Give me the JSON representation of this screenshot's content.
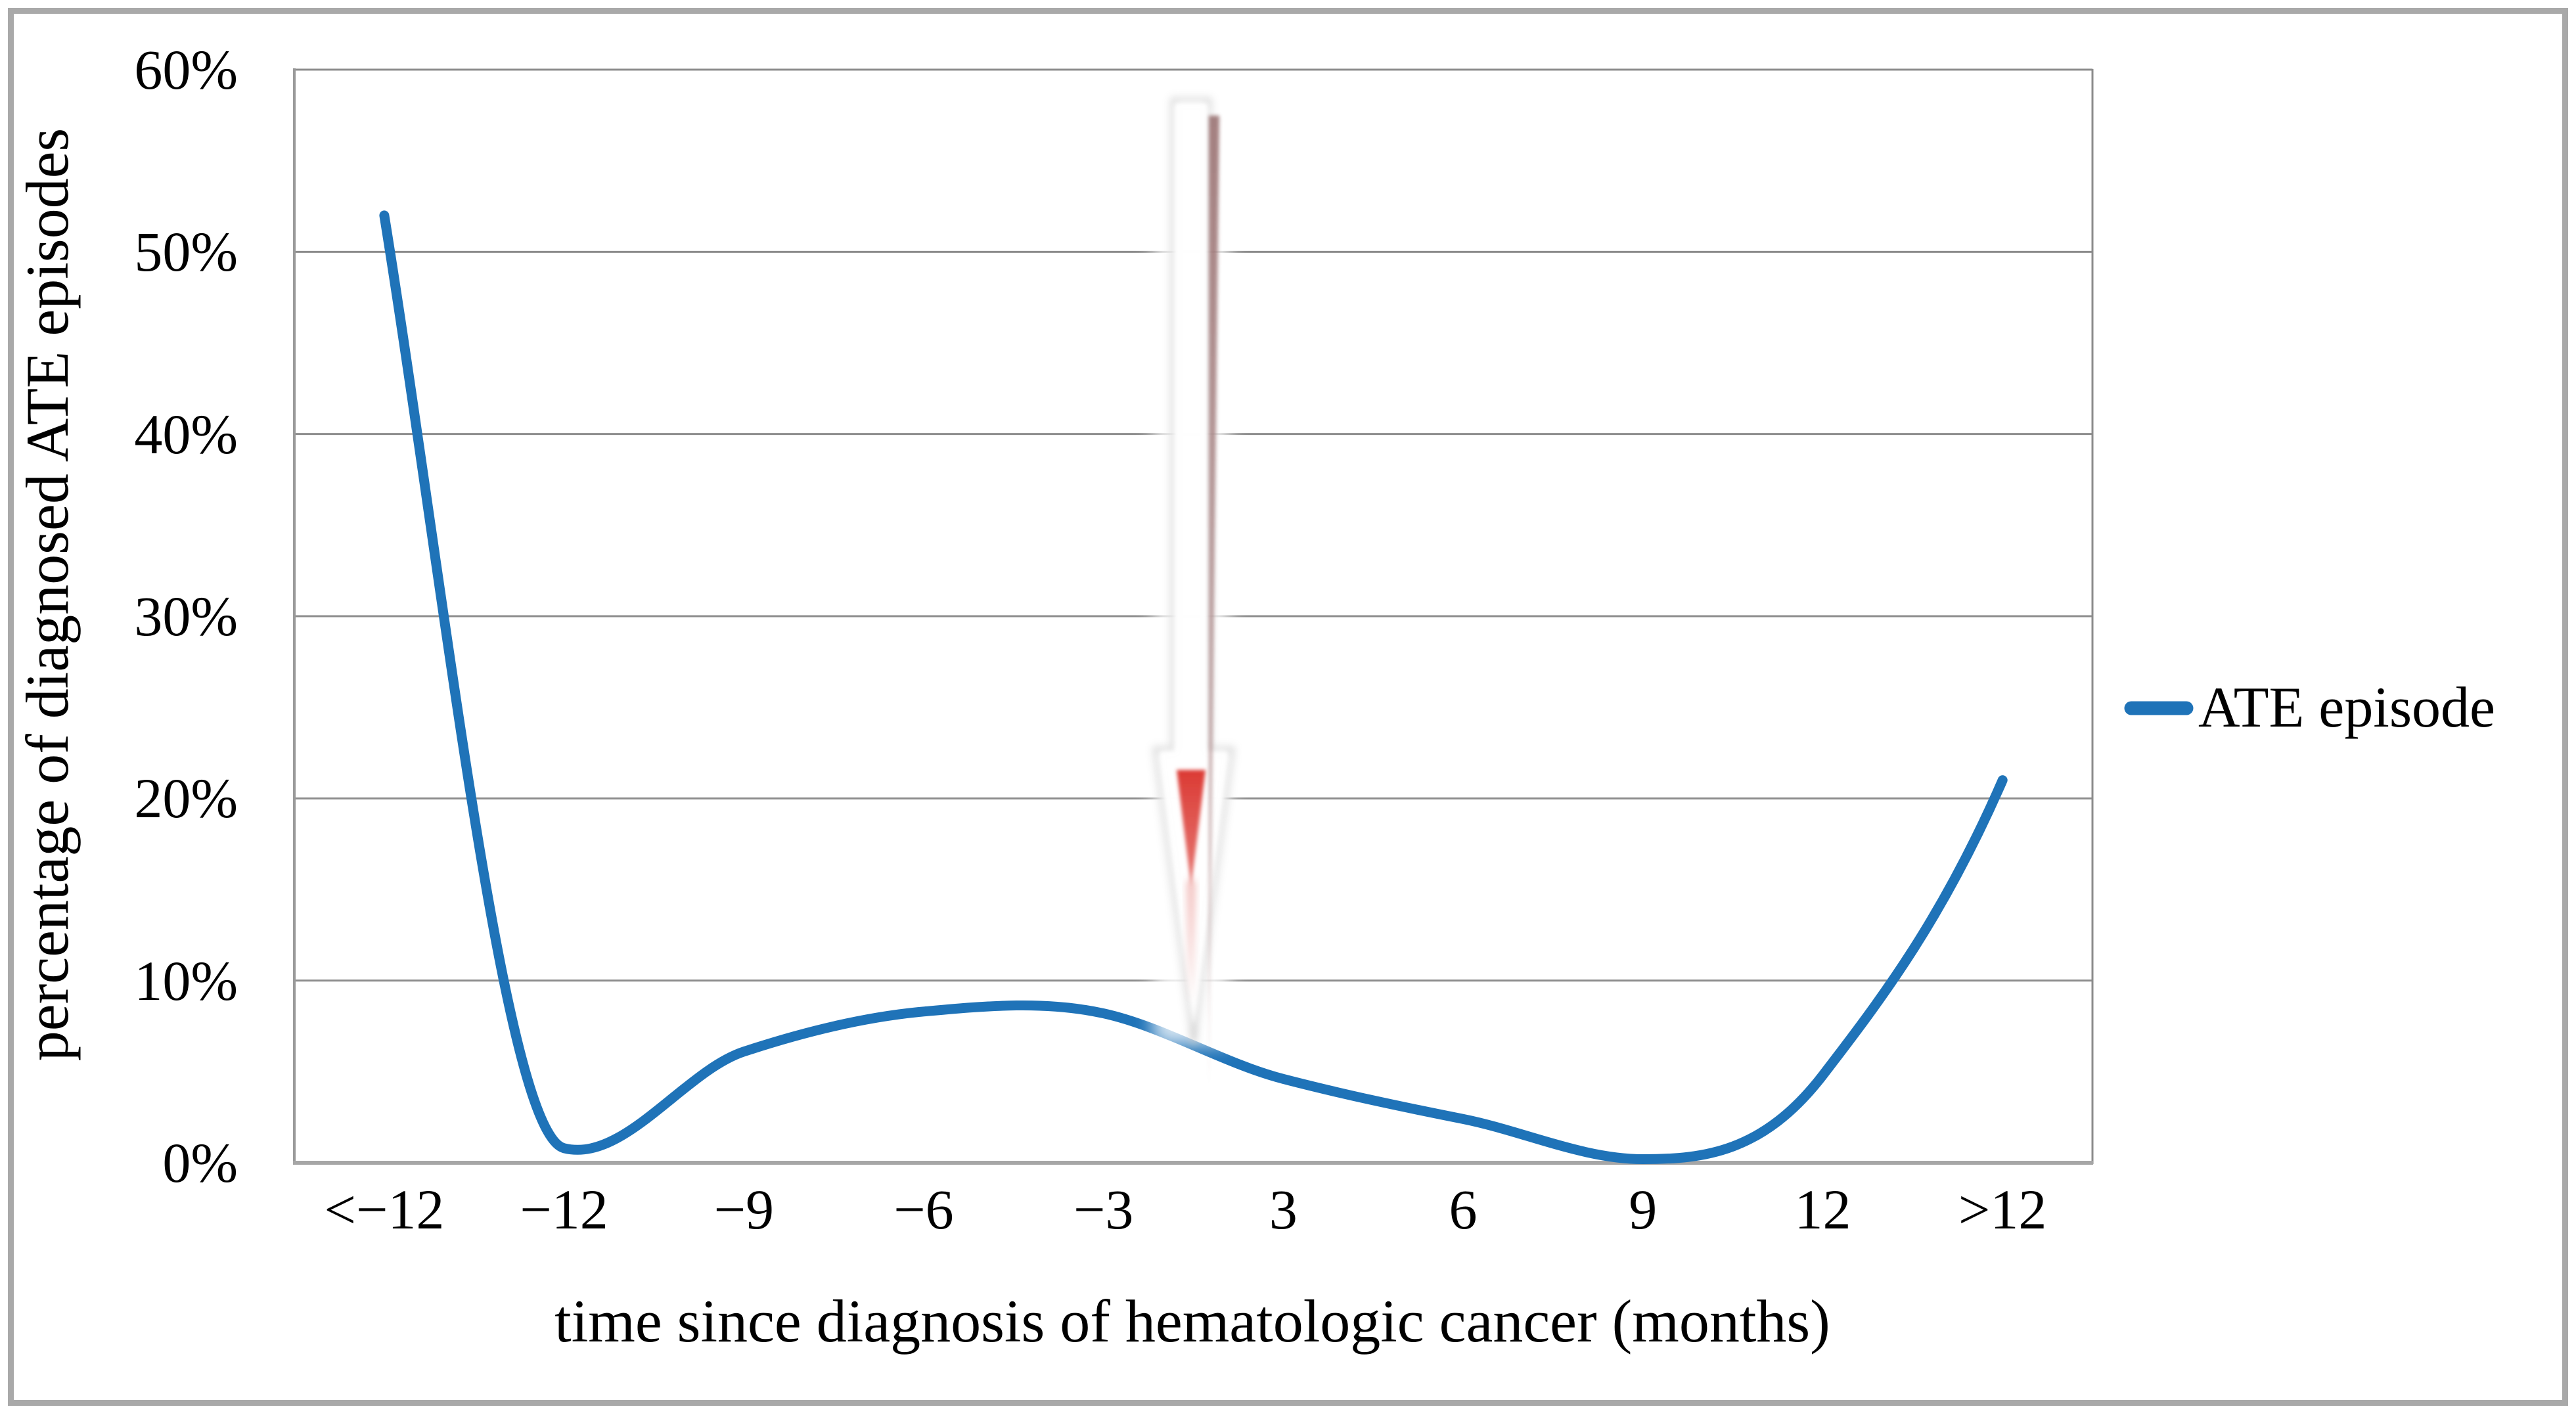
{
  "figure": {
    "kind": "published line chart (paper figure)",
    "legend": {
      "label": "ATE episode"
    },
    "y_axis": {
      "title": "percentage of diagnosed ATE episodes",
      "tick_labels": [
        "60%",
        "50%",
        "40%",
        "30%",
        "20%",
        "10%",
        "0%"
      ]
    },
    "x_axis": {
      "title": "time since diagnosis of hematologic cancer (months)",
      "tick_labels": [
        "<−12",
        "−12",
        "−9",
        "−6",
        "−3",
        "3",
        "6",
        "9",
        "12",
        ">12"
      ]
    }
  },
  "chart_data": {
    "type": "line",
    "title": "",
    "categories": [
      "<−12",
      "−12",
      "−9",
      "−6",
      "−3",
      "3",
      "6",
      "9",
      "12",
      ">12"
    ],
    "series": [
      {
        "name": "ATE episode",
        "values": [
          52,
          0.8,
          6.1,
          8.3,
          8.2,
          4.6,
          2.4,
          0.2,
          4.8,
          21
        ]
      }
    ],
    "xlabel": "time since diagnosis of hematologic cancer (months)",
    "ylabel": "percentage of diagnosed ATE episodes",
    "ylim": [
      0,
      60
    ],
    "y_tick_step": 10,
    "y_tick_format": "percent",
    "grid": true,
    "legend_position": "right-middle",
    "smooth_line": true,
    "annotations": [
      {
        "type": "arrow-down",
        "x_position": "time 0 (between −3 and 3)",
        "meaning": "marks moment of hematologic cancer diagnosis",
        "style": "tall thin white arrow with red center line, red arrowhead and maroon shadow streak"
      }
    ]
  },
  "colors": {
    "series_line": "#1F73B8",
    "gridline": "#8C8C8C",
    "axis_line": "#9A9A9A",
    "bottom_axis": "#A6A6A6",
    "figure_border": "#A9A9A9",
    "arrow_head_red": "#DB3A34",
    "arrow_shaft_red": "#D95350",
    "arrow_shadow_maroon": "#966565",
    "text": "#000000",
    "background": "#FFFFFF"
  }
}
